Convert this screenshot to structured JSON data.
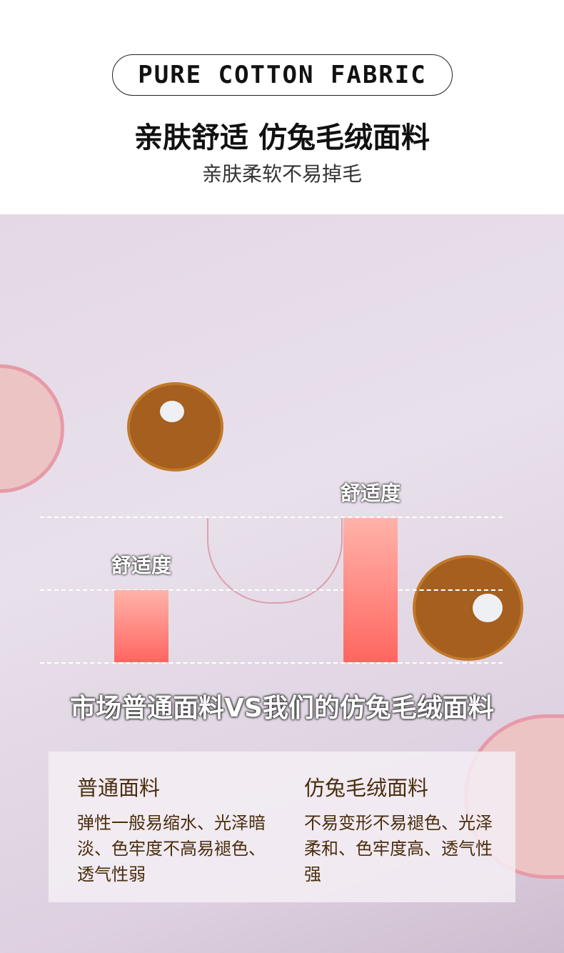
{
  "header": {
    "badge": "PURE COTTON FABRIC",
    "title": "亲肤舒适  仿兔毛绒面料",
    "subtitle": "亲肤柔软不易掉毛"
  },
  "chart_data": {
    "type": "bar",
    "categories": [
      "市场普通面料",
      "我们的仿兔毛绒面料"
    ],
    "labels": [
      "舒适度",
      "舒适度"
    ],
    "values": [
      0.5,
      1.0
    ],
    "ylim": [
      0,
      1
    ],
    "grid": true,
    "colors": [
      "#ffb3aa",
      "#ff6660"
    ],
    "title": "市场普通面料VS我们的仿兔毛绒面料"
  },
  "comparison": [
    {
      "title": "普通面料",
      "desc": "弹性一般易缩水、光泽暗淡、色牢度不高易褪色、透气性弱"
    },
    {
      "title": "仿兔毛绒面料",
      "desc": "不易变形不易褪色、光泽柔和、色牢度高、透气性强"
    }
  ]
}
